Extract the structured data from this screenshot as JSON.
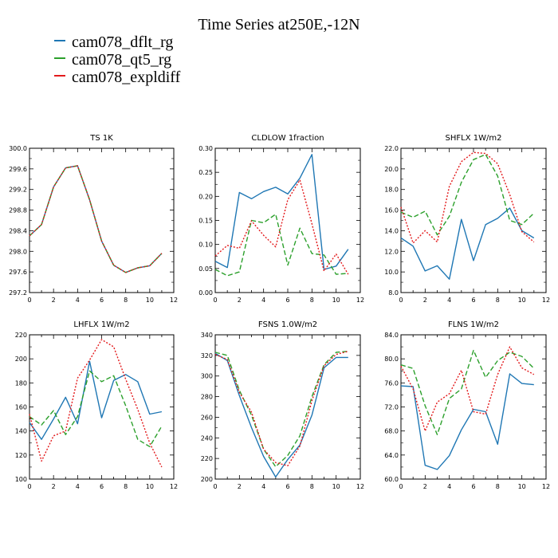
{
  "title": "Time Series at250E,-12N",
  "legend": [
    {
      "label": "cam078_dflt_rg",
      "color": "#1f77b4"
    },
    {
      "label": "cam078_qt5_rg",
      "color": "#2ca02c"
    },
    {
      "label": "cam078_expldiff",
      "color": "#e31a1c"
    }
  ],
  "chart_data": [
    {
      "type": "line",
      "title": "TS   1K",
      "xlim": [
        0,
        12
      ],
      "ylim": [
        297.2,
        300.0
      ],
      "xticks": [
        "0",
        "2",
        "4",
        "6",
        "8",
        "10",
        "12"
      ],
      "yticks": [
        "297.2",
        "297.6",
        "298.0",
        "298.4",
        "298.8",
        "299.2",
        "299.6",
        "300.0"
      ],
      "x": [
        0,
        1,
        2,
        3,
        4,
        5,
        6,
        7,
        8,
        9,
        10,
        11
      ],
      "series": [
        {
          "name": "cam078_dflt_rg",
          "values": [
            298.3,
            298.52,
            299.25,
            299.62,
            299.66,
            299.0,
            298.2,
            297.73,
            297.59,
            297.68,
            297.72,
            297.96
          ]
        },
        {
          "name": "cam078_qt5_rg",
          "values": [
            298.3,
            298.52,
            299.25,
            299.62,
            299.66,
            299.0,
            298.2,
            297.73,
            297.59,
            297.68,
            297.72,
            297.96
          ]
        },
        {
          "name": "cam078_expldiff",
          "values": [
            298.3,
            298.52,
            299.25,
            299.62,
            299.66,
            299.0,
            298.2,
            297.73,
            297.59,
            297.68,
            297.72,
            297.96
          ]
        }
      ]
    },
    {
      "type": "line",
      "title": "CLDLOW   1fraction",
      "xlim": [
        0,
        12
      ],
      "ylim": [
        0.0,
        0.3
      ],
      "xticks": [
        "0",
        "2",
        "4",
        "6",
        "8",
        "10",
        "12"
      ],
      "yticks": [
        "0.00",
        "0.05",
        "0.10",
        "0.15",
        "0.20",
        "0.25",
        "0.30"
      ],
      "x": [
        0,
        1,
        2,
        3,
        4,
        5,
        6,
        7,
        8,
        9,
        10,
        11
      ],
      "series": [
        {
          "name": "cam078_dflt_rg",
          "values": [
            0.065,
            0.052,
            0.208,
            0.195,
            0.21,
            0.219,
            0.205,
            0.238,
            0.287,
            0.048,
            0.055,
            0.09
          ]
        },
        {
          "name": "cam078_qt5_rg",
          "values": [
            0.048,
            0.035,
            0.043,
            0.15,
            0.145,
            0.163,
            0.057,
            0.134,
            0.081,
            0.078,
            0.038,
            0.04
          ]
        },
        {
          "name": "cam078_expldiff",
          "values": [
            0.076,
            0.098,
            0.092,
            0.149,
            0.119,
            0.095,
            0.193,
            0.234,
            0.143,
            0.045,
            0.08,
            0.038
          ]
        }
      ]
    },
    {
      "type": "line",
      "title": "SHFLX   1W/m2",
      "xlim": [
        0,
        12
      ],
      "ylim": [
        8.0,
        22.0
      ],
      "xticks": [
        "0",
        "2",
        "4",
        "6",
        "8",
        "10",
        "12"
      ],
      "yticks": [
        "8.0",
        "10.0",
        "12.0",
        "14.0",
        "16.0",
        "18.0",
        "20.0",
        "22.0"
      ],
      "x": [
        0,
        1,
        2,
        3,
        4,
        5,
        6,
        7,
        8,
        9,
        10,
        11
      ],
      "series": [
        {
          "name": "cam078_dflt_rg",
          "values": [
            13.3,
            12.5,
            10.1,
            10.6,
            9.3,
            15.1,
            11.1,
            14.6,
            15.2,
            16.2,
            14.0,
            13.3
          ]
        },
        {
          "name": "cam078_qt5_rg",
          "values": [
            15.8,
            15.3,
            15.9,
            13.6,
            15.4,
            18.7,
            20.9,
            21.4,
            19.3,
            15.0,
            14.6,
            15.7
          ]
        },
        {
          "name": "cam078_expldiff",
          "values": [
            16.3,
            12.8,
            14.0,
            12.9,
            18.3,
            20.7,
            21.6,
            21.5,
            20.5,
            17.5,
            13.9,
            12.9
          ]
        }
      ]
    },
    {
      "type": "line",
      "title": "LHFLX   1W/m2",
      "xlim": [
        0,
        12
      ],
      "ylim": [
        100,
        220
      ],
      "xticks": [
        "0",
        "2",
        "4",
        "6",
        "8",
        "10",
        "12"
      ],
      "yticks": [
        "100",
        "120",
        "140",
        "160",
        "180",
        "200",
        "220"
      ],
      "x": [
        0,
        1,
        2,
        3,
        4,
        5,
        6,
        7,
        8,
        9,
        10,
        11
      ],
      "series": [
        {
          "name": "cam078_dflt_rg",
          "values": [
            147,
            133,
            150,
            168,
            146,
            198,
            151,
            182,
            187,
            181,
            154,
            156
          ]
        },
        {
          "name": "cam078_qt5_rg",
          "values": [
            152,
            145,
            157,
            137,
            152,
            190,
            181,
            186,
            161,
            133,
            127,
            144
          ]
        },
        {
          "name": "cam078_expldiff",
          "values": [
            154,
            115,
            136,
            140,
            184,
            199,
            216,
            210,
            183,
            158,
            130,
            110
          ]
        }
      ]
    },
    {
      "type": "line",
      "title": "FSNS   1.0W/m2",
      "xlim": [
        0,
        12
      ],
      "ylim": [
        200,
        340
      ],
      "xticks": [
        "0",
        "2",
        "4",
        "6",
        "8",
        "10",
        "12"
      ],
      "yticks": [
        "200",
        "220",
        "240",
        "260",
        "280",
        "300",
        "320",
        "340"
      ],
      "x": [
        0,
        1,
        2,
        3,
        4,
        5,
        6,
        7,
        8,
        9,
        10,
        11
      ],
      "series": [
        {
          "name": "cam078_dflt_rg",
          "values": [
            322,
            315,
            281,
            250,
            222,
            202,
            219,
            233,
            262,
            308,
            318,
            318
          ]
        },
        {
          "name": "cam078_qt5_rg",
          "values": [
            323,
            320,
            286,
            262,
            229,
            212,
            223,
            242,
            280,
            311,
            323,
            324
          ]
        },
        {
          "name": "cam078_expldiff",
          "values": [
            321,
            316,
            284,
            265,
            229,
            216,
            213,
            232,
            276,
            310,
            321,
            324
          ]
        }
      ]
    },
    {
      "type": "line",
      "title": "FLNS   1W/m2",
      "xlim": [
        0,
        12
      ],
      "ylim": [
        60.0,
        84.0
      ],
      "xticks": [
        "0",
        "2",
        "4",
        "6",
        "8",
        "10",
        "12"
      ],
      "yticks": [
        "60.0",
        "64.0",
        "68.0",
        "72.0",
        "76.0",
        "80.0",
        "84.0"
      ],
      "x": [
        0,
        1,
        2,
        3,
        4,
        5,
        6,
        7,
        8,
        9,
        10,
        11
      ],
      "series": [
        {
          "name": "cam078_dflt_rg",
          "values": [
            75.5,
            75.4,
            62.3,
            61.6,
            63.9,
            68.2,
            71.6,
            71.2,
            65.8,
            77.5,
            75.9,
            75.7
          ]
        },
        {
          "name": "cam078_qt5_rg",
          "values": [
            79.0,
            78.4,
            72.2,
            67.4,
            73.4,
            75.0,
            81.4,
            76.9,
            79.7,
            81.1,
            80.4,
            78.4
          ]
        },
        {
          "name": "cam078_expldiff",
          "values": [
            78.8,
            75.0,
            68.0,
            72.8,
            74.2,
            78.1,
            71.2,
            70.8,
            77.4,
            82.0,
            78.5,
            77.4
          ]
        }
      ]
    }
  ]
}
